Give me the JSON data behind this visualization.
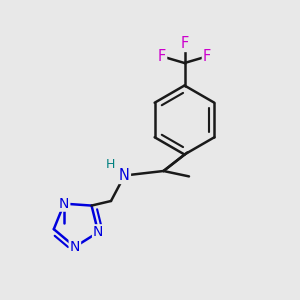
{
  "background_color": "#e8e8e8",
  "bond_color": "#1a1a1a",
  "N_color": "#0000dd",
  "F_color": "#cc00cc",
  "H_color": "#008080",
  "line_width": 1.8,
  "font_size_atom": 10.5,
  "figsize": [
    3.0,
    3.0
  ],
  "dpi": 100,
  "xlim": [
    0,
    1
  ],
  "ylim": [
    0,
    1
  ]
}
